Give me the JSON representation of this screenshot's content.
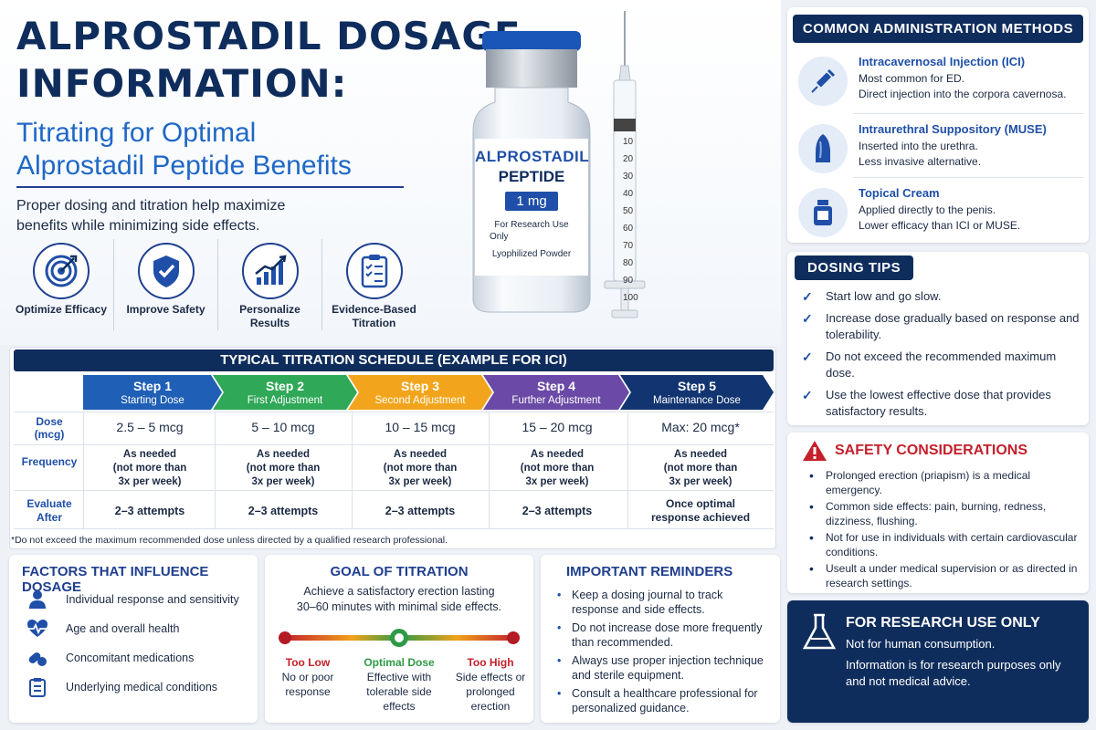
{
  "header": {
    "title": "ALPROSTADIL DOSAGE INFORMATION:",
    "title_line1": "ALPROSTADIL DOSAGE",
    "title_line2": "INFORMATION:",
    "subtitle_line1": "Titrating for Optimal",
    "subtitle_line2": "Alprostadil Peptide Benefits",
    "intro": "Proper dosing and titration help maximize benefits while minimizing side effects."
  },
  "benefits": [
    {
      "label": "Optimize Efficacy",
      "icon": "target-icon"
    },
    {
      "label": "Improve Safety",
      "icon": "shield-check-icon"
    },
    {
      "label": "Personalize Results",
      "icon": "growth-chart-icon"
    },
    {
      "label": "Evidence-Based Titration",
      "icon": "clipboard-checklist-icon"
    }
  ],
  "vial": {
    "name": "ALPROSTADIL",
    "type": "PEPTIDE",
    "strength": "1 mg",
    "note1": "For Research Use",
    "note2": "Only",
    "note3": "Lyophilized Powder"
  },
  "syringe_marks": [
    "10",
    "20",
    "30",
    "40",
    "50",
    "60",
    "70",
    "80",
    "90",
    "100"
  ],
  "administration": {
    "heading": "COMMON ADMINISTRATION METHODS",
    "methods": [
      {
        "title": "Intracavernosal Injection (ICI)",
        "line1": "Most common for ED.",
        "line2": "Direct injection into the corpora cavernosa.",
        "icon": "syringe-icon"
      },
      {
        "title": "Intraurethral Suppository (MUSE)",
        "line1": "Inserted into the urethra.",
        "line2": "Less invasive alternative.",
        "icon": "suppository-icon"
      },
      {
        "title": "Topical Cream",
        "line1": "Applied directly to the penis.",
        "line2": "Lower efficacy than ICI or MUSE.",
        "icon": "cream-jar-icon"
      }
    ]
  },
  "dosing_tips": {
    "heading": "DOSING TIPS",
    "items": [
      "Start low and go slow.",
      "Increase dose gradually based on response and tolerability.",
      "Do not exceed the recommended maximum dose.",
      "Use the lowest effective dose that provides satisfactory results."
    ]
  },
  "safety": {
    "heading": "SAFETY CONSIDERATIONS",
    "items": [
      "Prolonged erection (priapism) is a medical emergency.",
      "Common side effects: pain, burning, redness, dizziness, flushing.",
      "Not for use in individuals with certain cardiovascular conditions.",
      "Useult a under medical supervision or as directed in research settings."
    ]
  },
  "research": {
    "heading": "FOR RESEARCH USE ONLY",
    "line1": "Not for human consumption.",
    "line2": "Information is for research purposes only and not medical advice."
  },
  "schedule": {
    "heading": "TYPICAL TITRATION SCHEDULE (EXAMPLE FOR ICI)",
    "row_labels": {
      "dose_a": "Dose",
      "dose_b": "(mcg)",
      "frequency": "Frequency",
      "eval_a": "Evaluate",
      "eval_b": "After"
    },
    "steps": [
      {
        "name": "Step 1",
        "sub": "Starting Dose",
        "color": "#1f5fb5",
        "dose": "2.5 – 5 mcg",
        "freq1": "As needed",
        "freq2": "(not more than",
        "freq3": "3x per week)",
        "eval1": "2–3 attempts",
        "eval2": ""
      },
      {
        "name": "Step 2",
        "sub": "First Adjustment",
        "color": "#2fa857",
        "dose": "5 – 10 mcg",
        "freq1": "As needed",
        "freq2": "(not more than",
        "freq3": "3x per week)",
        "eval1": "2–3 attempts",
        "eval2": ""
      },
      {
        "name": "Step 3",
        "sub": "Second Adjustment",
        "color": "#f2a51c",
        "dose": "10 – 15 mcg",
        "freq1": "As needed",
        "freq2": "(not more than",
        "freq3": "3x per week)",
        "eval1": "2–3 attempts",
        "eval2": ""
      },
      {
        "name": "Step 4",
        "sub": "Further Adjustment",
        "color": "#6a4aa6",
        "dose": "15 – 20 mcg",
        "freq1": "As needed",
        "freq2": "(not more than",
        "freq3": "3x per week)",
        "eval1": "2–3 attempts",
        "eval2": ""
      },
      {
        "name": "Step 5",
        "sub": "Maintenance Dose",
        "color": "#123572",
        "dose": "Max: 20 mcg*",
        "freq1": "As needed",
        "freq2": "(not more than",
        "freq3": "3x per week)",
        "eval1": "Once optimal",
        "eval2": "response achieved"
      }
    ],
    "footnote": "*Do not exceed the maximum recommended dose unless directed by a qualified research professional."
  },
  "factors": {
    "heading": "FACTORS THAT INFLUENCE DOSAGE",
    "items": [
      {
        "label": "Individual response and sensitivity",
        "icon": "person-icon"
      },
      {
        "label": "Age and overall health",
        "icon": "heart-pulse-icon"
      },
      {
        "label": "Concomitant medications",
        "icon": "pills-icon"
      },
      {
        "label": "Underlying medical conditions",
        "icon": "clipboard-icon"
      }
    ]
  },
  "goal": {
    "heading": "GOAL OF TITRATION",
    "desc1": "Achieve a satisfactory erection lasting",
    "desc2": "30–60 minutes with minimal side effects.",
    "low": {
      "title": "Too Low",
      "l1": "No or poor",
      "l2": "response",
      "l3": "",
      "color": "#c4202b"
    },
    "optimal": {
      "title": "Optimal Dose",
      "l1": "Effective with",
      "l2": "tolerable side",
      "l3": "effects",
      "color": "#2e9a45"
    },
    "high": {
      "title": "Too High",
      "l1": "Side effects or",
      "l2": "prolonged",
      "l3": "erection",
      "color": "#c4202b"
    }
  },
  "reminders": {
    "heading": "IMPORTANT REMINDERS",
    "items": [
      "Keep a dosing journal to track response and side effects.",
      "Do not increase dose more frequently than recommended.",
      "Always use proper injection technique and sterile equipment.",
      "Consult a healthcare professional for personalized guidance."
    ]
  },
  "colors": {
    "navy": "#0f2d5c",
    "blue": "#1f67c7",
    "red": "#c4202b",
    "green": "#2e9a45"
  }
}
